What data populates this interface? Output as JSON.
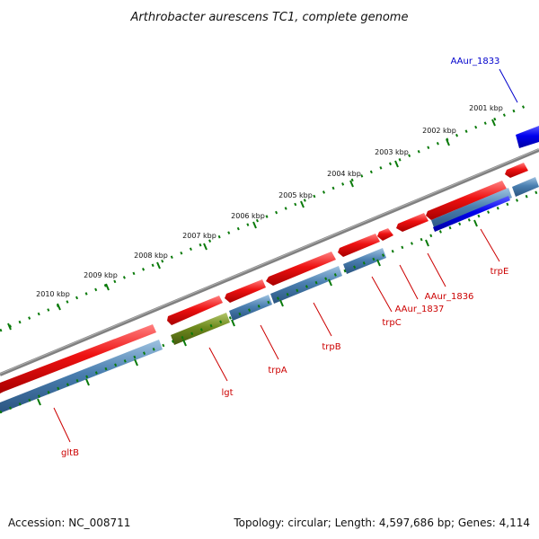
{
  "title": "Arthrobacter aurescens TC1, complete genome",
  "footer": {
    "accession": "Accession: NC_008711",
    "topology": "Topology: circular; Length: 4,597,686 bp; Genes: 4,114"
  },
  "colors": {
    "backbone": "#808080",
    "tick": "#0a7a0a",
    "gene_red": "#ee1111",
    "gene_blue": "#4a7fb0",
    "gene_olive": "#6f8a1e",
    "highlight_blue": "#0000ee",
    "label_red": "#cc0000",
    "label_blue": "#0000cc"
  },
  "tick_labels": [
    {
      "kbp": 2001,
      "text": "2001 kbp"
    },
    {
      "kbp": 2002,
      "text": "2002 kbp"
    },
    {
      "kbp": 2003,
      "text": "2003 kbp"
    },
    {
      "kbp": 2004,
      "text": "2004 kbp"
    },
    {
      "kbp": 2005,
      "text": "2005 kbp"
    },
    {
      "kbp": 2006,
      "text": "2006 kbp"
    },
    {
      "kbp": 2007,
      "text": "2007 kbp"
    },
    {
      "kbp": 2008,
      "text": "2008 kbp"
    },
    {
      "kbp": 2009,
      "text": "2009 kbp"
    },
    {
      "kbp": 2010,
      "text": "2010 kbp"
    }
  ],
  "gene_labels": [
    {
      "name": "AAur_1833",
      "color": "blue"
    },
    {
      "name": "trpE",
      "color": "red"
    },
    {
      "name": "AAur_1836",
      "color": "red"
    },
    {
      "name": "AAur_1837",
      "color": "red"
    },
    {
      "name": "trpC",
      "color": "red"
    },
    {
      "name": "trpB",
      "color": "red"
    },
    {
      "name": "trpA",
      "color": "red"
    },
    {
      "name": "lgt",
      "color": "red"
    },
    {
      "name": "gltB",
      "color": "red"
    }
  ]
}
